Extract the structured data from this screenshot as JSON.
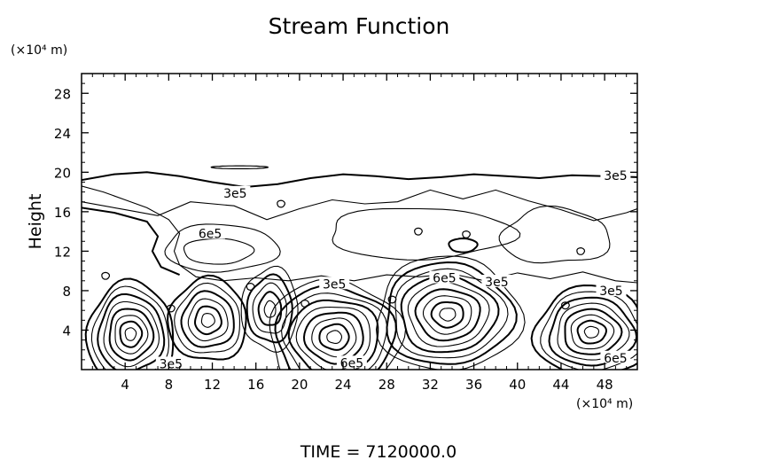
{
  "chart_data": {
    "type": "contour",
    "title": "Stream Function",
    "ylabel": "Height",
    "y_unit_label": "(×10⁴ m)",
    "x_unit_label": "(×10⁴ m)",
    "xlim": [
      0,
      51
    ],
    "ylim": [
      0,
      30
    ],
    "x_ticks": [
      4,
      8,
      12,
      16,
      20,
      24,
      28,
      32,
      36,
      40,
      44,
      48
    ],
    "y_ticks": [
      4,
      8,
      12,
      16,
      20,
      24,
      28
    ],
    "footer": "TIME  =  7120000.0",
    "contour_labels": [
      {
        "text": "3e5",
        "x": 49.0,
        "y": 19.6
      },
      {
        "text": "3e5",
        "x": 14.1,
        "y": 17.8
      },
      {
        "text": "6e5",
        "x": 11.8,
        "y": 13.7
      },
      {
        "text": "3e5",
        "x": 23.2,
        "y": 8.6
      },
      {
        "text": "6e5",
        "x": 33.3,
        "y": 9.2
      },
      {
        "text": "3e5",
        "x": 38.1,
        "y": 8.8
      },
      {
        "text": "3e5",
        "x": 48.6,
        "y": 7.9
      },
      {
        "text": "3e5",
        "x": 8.2,
        "y": 0.5
      },
      {
        "text": "6e5",
        "x": 24.8,
        "y": 0.6
      },
      {
        "text": "6e5",
        "x": 49.0,
        "y": 1.1
      }
    ],
    "vortices": [
      {
        "cx": 4.5,
        "cy": 3.6,
        "rx": 4.0,
        "ry": 5.2,
        "rings": 8
      },
      {
        "cx": 11.6,
        "cy": 5.0,
        "rx": 3.6,
        "ry": 4.2,
        "rings": 6
      },
      {
        "cx": 17.3,
        "cy": 6.1,
        "rx": 2.6,
        "ry": 4.2,
        "rings": 5
      },
      {
        "cx": 23.2,
        "cy": 3.3,
        "rx": 6.1,
        "ry": 5.8,
        "rings": 9
      },
      {
        "cx": 33.6,
        "cy": 5.6,
        "rx": 6.6,
        "ry": 5.8,
        "rings": 9
      },
      {
        "cx": 46.8,
        "cy": 3.8,
        "rx": 5.2,
        "ry": 4.6,
        "rings": 8
      }
    ]
  }
}
